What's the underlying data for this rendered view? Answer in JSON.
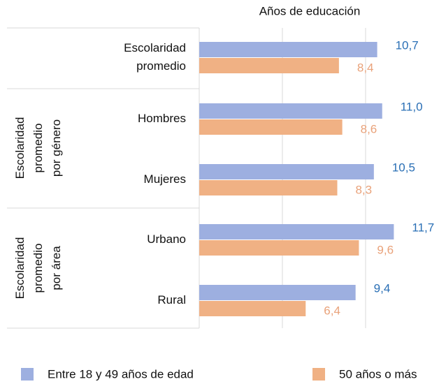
{
  "chart_data": {
    "type": "hbar",
    "title": "Años de educación",
    "categories": [
      "Escolaridad promedio",
      "Hombres",
      "Mujeres",
      "Urbano",
      "Rural"
    ],
    "groups": [
      "Escolaridad promedio por género",
      "Escolaridad promedio por área"
    ],
    "series": [
      {
        "name": "Entre 18 y 49 años de edad",
        "color": "#9dafe0",
        "label_color": "#2a6fb5",
        "values": [
          10.7,
          11.0,
          10.5,
          11.7,
          9.4
        ],
        "value_labels": [
          "10,7",
          "11,0",
          "10,5",
          "11,7",
          "9,4"
        ]
      },
      {
        "name": "50 años o más",
        "color": "#f0b184",
        "label_color": "#e9a27a",
        "values": [
          8.4,
          8.6,
          8.3,
          9.6,
          6.4
        ],
        "value_labels": [
          "8,4",
          "8,6",
          "8,3",
          "9,6",
          "6,4"
        ]
      }
    ],
    "xlim": [
      0,
      14.5
    ],
    "grid_values": [
      0,
      5,
      10
    ],
    "grid": true
  }
}
